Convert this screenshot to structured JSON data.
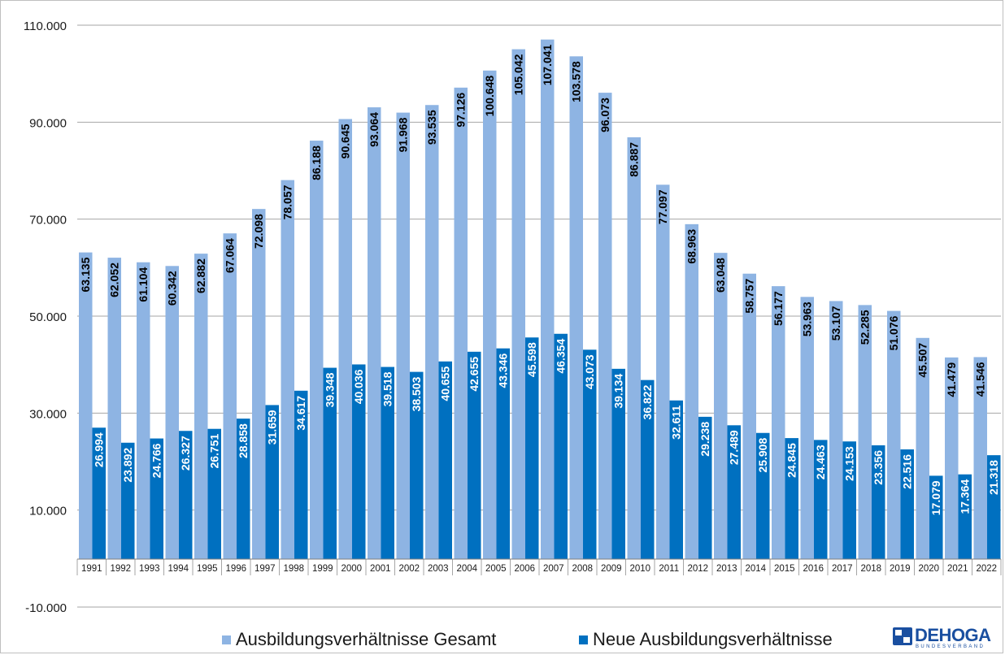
{
  "chart_data": {
    "type": "bar",
    "categories": [
      "1991",
      "1992",
      "1993",
      "1994",
      "1995",
      "1996",
      "1997",
      "1998",
      "1999",
      "2000",
      "2001",
      "2002",
      "2003",
      "2004",
      "2005",
      "2006",
      "2007",
      "2008",
      "2009",
      "2010",
      "2011",
      "2012",
      "2013",
      "2014",
      "2015",
      "2016",
      "2017",
      "2018",
      "2019",
      "2020",
      "2021",
      "2022"
    ],
    "series": [
      {
        "name": "Ausbildungsverhältnisse Gesamt",
        "color": "#8eb4e3",
        "values": [
          63135,
          62052,
          61104,
          60342,
          62882,
          67064,
          72098,
          78057,
          86188,
          90645,
          93064,
          91968,
          93535,
          97126,
          100648,
          105042,
          107041,
          103578,
          96073,
          86887,
          77097,
          68963,
          63048,
          58757,
          56177,
          53963,
          53107,
          52285,
          51076,
          45507,
          41479,
          41546
        ],
        "labels": [
          "63.135",
          "62.052",
          "61.104",
          "60.342",
          "62.882",
          "67.064",
          "72.098",
          "78.057",
          "86.188",
          "90.645",
          "93.064",
          "91.968",
          "93.535",
          "97.126",
          "100.648",
          "105.042",
          "107.041",
          "103.578",
          "96.073",
          "86.887",
          "77.097",
          "68.963",
          "63.048",
          "58.757",
          "56.177",
          "53.963",
          "53.107",
          "52.285",
          "51.076",
          "45.507",
          "41.479",
          "41.546"
        ]
      },
      {
        "name": "Neue Ausbildungsverhältnisse",
        "color": "#0070c0",
        "values": [
          26994,
          23892,
          24766,
          26327,
          26751,
          28858,
          31659,
          34617,
          39348,
          40036,
          39518,
          38503,
          40655,
          42655,
          43346,
          45598,
          46354,
          43073,
          39134,
          36822,
          32611,
          29238,
          27489,
          25908,
          24845,
          24463,
          24153,
          23356,
          22516,
          17079,
          17364,
          21318
        ],
        "labels": [
          "26.994",
          "23.892",
          "24.766",
          "26.327",
          "26.751",
          "28.858",
          "31.659",
          "34.617",
          "39.348",
          "40.036",
          "39.518",
          "38.503",
          "40.655",
          "42.655",
          "43.346",
          "45.598",
          "46.354",
          "43.073",
          "39.134",
          "36.822",
          "32.611",
          "29.238",
          "27.489",
          "25.908",
          "24.845",
          "24.463",
          "24.153",
          "23.356",
          "22.516",
          "17.079",
          "17.364",
          "21.318"
        ]
      }
    ],
    "y_ticks": [
      110000,
      90000,
      70000,
      50000,
      30000,
      10000,
      -10000
    ],
    "y_tick_labels": [
      "110.000",
      "90.000",
      "70.000",
      "50.000",
      "30.000",
      "10.000",
      "-10.000"
    ],
    "ylim": [
      -10000,
      110000
    ],
    "grid": true,
    "legend_position": "bottom"
  },
  "legend": {
    "gesamt": "Ausbildungsverhältnisse Gesamt",
    "neu": "Neue Ausbildungsverhältnisse"
  },
  "logo": {
    "name": "DEHOGA",
    "sub": "BUNDESVERBAND"
  }
}
